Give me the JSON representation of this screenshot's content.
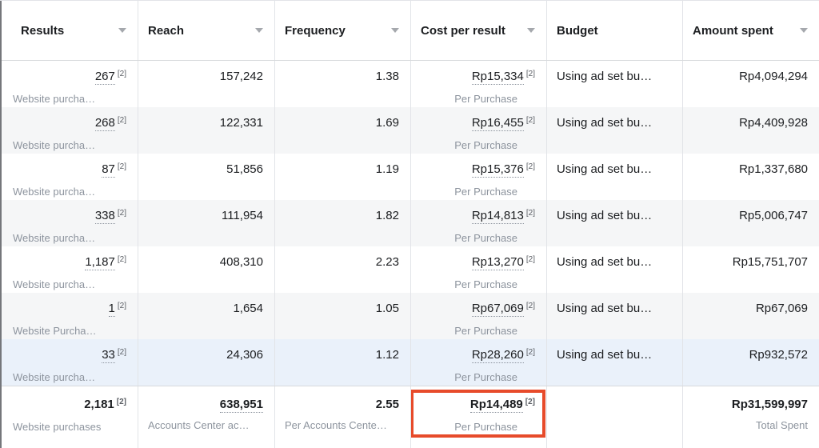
{
  "colors": {
    "highlight_box": "#e74b2b",
    "selected_row": "#eaf1fa",
    "stripe_row": "#f5f6f7"
  },
  "table": {
    "columns": [
      {
        "label": "Results",
        "sortable": true
      },
      {
        "label": "Reach",
        "sortable": true
      },
      {
        "label": "Frequency",
        "sortable": true
      },
      {
        "label": "Cost per result",
        "sortable": true
      },
      {
        "label": "Budget",
        "sortable": false
      },
      {
        "label": "Amount spent",
        "sortable": true
      }
    ],
    "rows": [
      {
        "results": "267",
        "results_sup": "[2]",
        "results_sub": "Website purcha…",
        "reach": "157,242",
        "frequency": "1.38",
        "cost": "Rp15,334",
        "cost_sup": "[2]",
        "cost_sub": "Per Purchase",
        "budget": "Using ad set bu…",
        "spent": "Rp4,094,294",
        "highlighted": false
      },
      {
        "results": "268",
        "results_sup": "[2]",
        "results_sub": "Website purcha…",
        "reach": "122,331",
        "frequency": "1.69",
        "cost": "Rp16,455",
        "cost_sup": "[2]",
        "cost_sub": "Per Purchase",
        "budget": "Using ad set bu…",
        "spent": "Rp4,409,928",
        "highlighted": false
      },
      {
        "results": "87",
        "results_sup": "[2]",
        "results_sub": "Website purcha…",
        "reach": "51,856",
        "frequency": "1.19",
        "cost": "Rp15,376",
        "cost_sup": "[2]",
        "cost_sub": "Per Purchase",
        "budget": "Using ad set bu…",
        "spent": "Rp1,337,680",
        "highlighted": false
      },
      {
        "results": "338",
        "results_sup": "[2]",
        "results_sub": "Website purcha…",
        "reach": "111,954",
        "frequency": "1.82",
        "cost": "Rp14,813",
        "cost_sup": "[2]",
        "cost_sub": "Per Purchase",
        "budget": "Using ad set bu…",
        "spent": "Rp5,006,747",
        "highlighted": false
      },
      {
        "results": "1,187",
        "results_sup": "[2]",
        "results_sub": "Website purcha…",
        "reach": "408,310",
        "frequency": "2.23",
        "cost": "Rp13,270",
        "cost_sup": "[2]",
        "cost_sub": "Per Purchase",
        "budget": "Using ad set bu…",
        "spent": "Rp15,751,707",
        "highlighted": false
      },
      {
        "results": "1",
        "results_sup": "[2]",
        "results_sub": "Website Purcha…",
        "reach": "1,654",
        "frequency": "1.05",
        "cost": "Rp67,069",
        "cost_sup": "[2]",
        "cost_sub": "Per Purchase",
        "budget": "Using ad set bu…",
        "spent": "Rp67,069",
        "highlighted": false
      },
      {
        "results": "33",
        "results_sup": "[2]",
        "results_sub": "Website purcha…",
        "reach": "24,306",
        "frequency": "1.12",
        "cost": "Rp28,260",
        "cost_sup": "[2]",
        "cost_sub": "Per Purchase",
        "budget": "Using ad set bu…",
        "spent": "Rp932,572",
        "highlighted": true
      }
    ],
    "summary": {
      "results": "2,181",
      "results_sup": "[2]",
      "results_sub": "Website purchases",
      "reach": "638,951",
      "reach_sub": "Accounts Center ac…",
      "frequency": "2.55",
      "frequency_sub": "Per Accounts Cente…",
      "cost": "Rp14,489",
      "cost_sup": "[2]",
      "cost_sub": "Per Purchase",
      "budget": "",
      "spent": "Rp31,599,997",
      "spent_sub": "Total Spent"
    }
  }
}
